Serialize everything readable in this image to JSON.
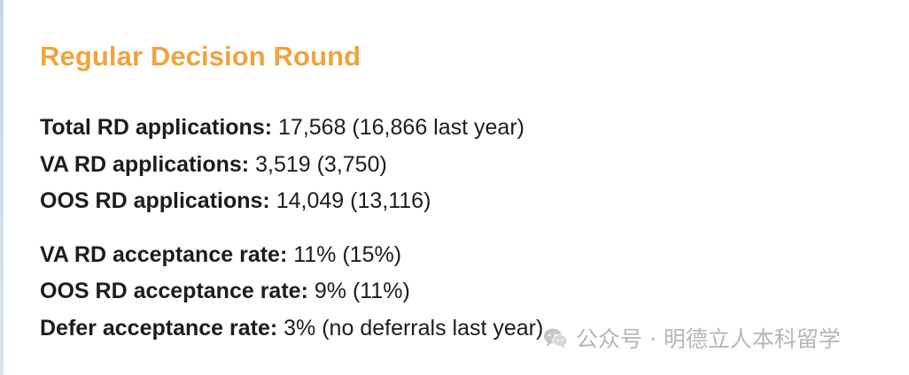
{
  "section": {
    "title": "Regular Decision Round"
  },
  "stats": {
    "applications": [
      {
        "label": "Total RD applications:",
        "value": "17,568 (16,866 last year)"
      },
      {
        "label": "VA RD applications:",
        "value": "3,519 (3,750)"
      },
      {
        "label": "OOS RD applications:",
        "value": "14,049 (13,116)"
      }
    ],
    "acceptance": [
      {
        "label": "VA RD acceptance rate:",
        "value": "11% (15%)"
      },
      {
        "label": "OOS RD acceptance rate:",
        "value": "9% (11%)"
      },
      {
        "label": "Defer acceptance rate:",
        "value": "3% (no deferrals last year)"
      }
    ]
  },
  "watermark": {
    "text": "公众号 · 明德立人本科留学",
    "icon": "wechat-icon"
  }
}
